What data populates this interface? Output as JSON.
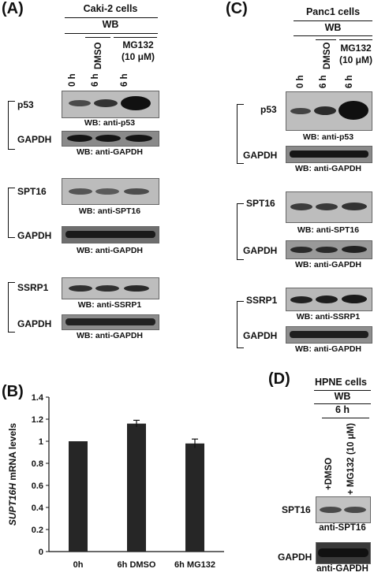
{
  "panelA": {
    "letter": "(A)",
    "cell_line": "Caki-2 cells",
    "wb": "WB",
    "treatment": "MG132 (10 μM)",
    "lanes": [
      "0 h",
      "6 h",
      "DMSO",
      "6 h"
    ],
    "blots": [
      {
        "protein": "p53",
        "caption": "WB: anti-p53"
      },
      {
        "protein": "GAPDH",
        "caption": "WB: anti-GAPDH"
      },
      {
        "protein": "SPT16",
        "caption": "WB: anti-SPT16"
      },
      {
        "protein": "GAPDH",
        "caption": "WB: anti-GAPDH"
      },
      {
        "protein": "SSRP1",
        "caption": "WB: anti-SSRP1"
      },
      {
        "protein": "GAPDH",
        "caption": "WB: anti-GAPDH"
      }
    ]
  },
  "panelC": {
    "letter": "(C)",
    "cell_line": "Panc1 cells",
    "wb": "WB",
    "treatment": "MG132 (10 μM)",
    "lanes": [
      "0 h",
      "6 h",
      "DMSO",
      "6 h"
    ],
    "blots": [
      {
        "protein": "p53",
        "caption": "WB: anti-p53"
      },
      {
        "protein": "GAPDH",
        "caption": "WB: anti-GAPDH"
      },
      {
        "protein": "SPT16",
        "caption": "WB: anti-SPT16"
      },
      {
        "protein": "GAPDH",
        "caption": "WB: anti-GAPDH"
      },
      {
        "protein": "SSRP1",
        "caption": "WB: anti-SSRP1"
      },
      {
        "protein": "GAPDH",
        "caption": "WB: anti-GAPDH"
      }
    ]
  },
  "panelD": {
    "letter": "(D)",
    "cell_line": "HPNE cells",
    "wb": "WB",
    "time": "6 h",
    "lanes": [
      "+DMSO",
      "+ MG132 (10 μM)"
    ],
    "blots": [
      {
        "protein": "SPT16",
        "caption": "anti-SPT16"
      },
      {
        "protein": "GAPDH",
        "caption": "anti-GAPDH"
      }
    ]
  },
  "panelB": {
    "letter": "(B)"
  },
  "chart_data": {
    "type": "bar",
    "categories": [
      "0h",
      "6h DMSO",
      "6h MG132"
    ],
    "values": [
      1.0,
      1.16,
      0.98
    ],
    "errors": [
      0.0,
      0.03,
      0.04
    ],
    "ylabel_italic": "SUPT16H",
    "ylabel_rest": " mRNA levels",
    "ylim": [
      0,
      1.4
    ],
    "yticks": [
      "0",
      "0.2",
      "0.4",
      "0.6",
      "0.8",
      "1",
      "1.2",
      "1.4"
    ],
    "bar_color": "#262626"
  }
}
